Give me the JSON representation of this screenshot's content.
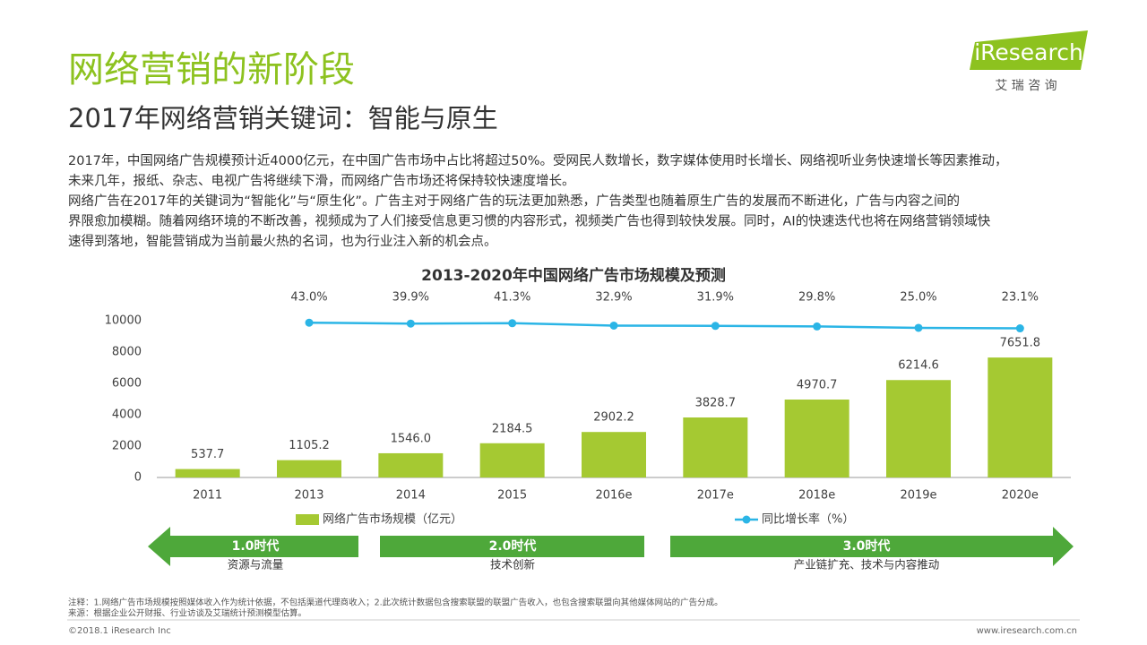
{
  "logo": {
    "brand": "iResearch",
    "sub": "艾 瑞 咨 询"
  },
  "header": {
    "title": "网络营销的新阶段",
    "subtitle": "2017年网络营销关键词：智能与原生"
  },
  "paragraph_lines": [
    "2017年，中国网络广告规模预计近4000亿元，在中国广告市场中占比将超过50%。受网民人数增长，数字媒体使用时长增长、网络视听业务快速增长等因素推动，",
    "未来几年，报纸、杂志、电视广告将继续下滑，而网络广告市场还将保持较快速度增长。",
    "网络广告在2017年的关键词为“智能化”与“原生化”。广告主对于网络广告的玩法更加熟悉，广告类型也随着原生广告的发展而不断进化，广告与内容之间的",
    "界限愈加模糊。随着网络环境的不断改善，视频成为了人们接受信息更习惯的内容形式，视频类广告也得到较快发展。同时，AI的快速迭代也将在网络营销领域快",
    "速得到落地，智能营销成为当前最火热的名词，也为行业注入新的机会点。"
  ],
  "chart_data": {
    "type": "bar",
    "title": "2013-2020年中国网络广告市场规模及预测",
    "categories": [
      "2011",
      "2013",
      "2014",
      "2015",
      "2016e",
      "2017e",
      "2018e",
      "2019e",
      "2020e"
    ],
    "series": [
      {
        "name": "网络广告市场规模（亿元）",
        "type": "bar",
        "color": "#a5c932",
        "values": [
          537.7,
          1105.2,
          1546.0,
          2184.5,
          2902.2,
          3828.7,
          4970.7,
          6214.6,
          7651.8
        ],
        "value_labels": [
          "537.7",
          "1105.2",
          "1546.0",
          "2184.5",
          "2902.2",
          "3828.7",
          "4970.7",
          "6214.6",
          "7651.8"
        ]
      },
      {
        "name": "同比增长率（%）",
        "type": "line",
        "axis": "y2",
        "color": "#2bb5e6",
        "values": [
          null,
          43.0,
          39.9,
          41.3,
          32.9,
          31.9,
          29.8,
          25.0,
          23.1
        ],
        "value_labels": [
          null,
          "43.0%",
          "39.9%",
          "41.3%",
          "32.9%",
          "31.9%",
          "29.8%",
          "25.0%",
          "23.1%"
        ]
      }
    ],
    "ylim": [
      0,
      10000
    ],
    "yticks": [
      0,
      2000,
      4000,
      6000,
      8000,
      10000
    ],
    "y2lim": [
      -500,
      50
    ],
    "grid": false,
    "legend": "bottom"
  },
  "eras": [
    {
      "name": "1.0时代",
      "desc": "资源与流量"
    },
    {
      "name": "2.0时代",
      "desc": "技术创新"
    },
    {
      "name": "3.0时代",
      "desc": "产业链扩充、技术与内容推动"
    }
  ],
  "notes": [
    "注释：1.网络广告市场规模按照媒体收入作为统计依据，不包括渠道代理商收入；2.此次统计数据包含搜索联盟的联盟广告收入，也包含搜索联盟向其他媒体网站的广告分成。",
    "来源：根据企业公开财报、行业访谈及艾瑞统计预测模型估算。"
  ],
  "footer": {
    "left": "©2018.1 iResearch Inc",
    "right": "www.iresearch.com.cn"
  }
}
